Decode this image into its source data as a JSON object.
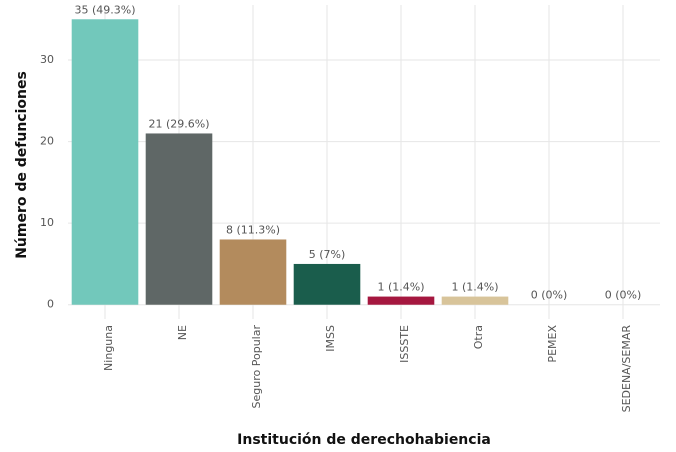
{
  "chart_data": {
    "type": "bar",
    "categories": [
      "Ninguna",
      "NE",
      "Seguro Popular",
      "IMSS",
      "ISSSTE",
      "Otra",
      "PEMEX",
      "SEDENA/SEMAR"
    ],
    "values": [
      35,
      21,
      8,
      5,
      1,
      1,
      0,
      0
    ],
    "value_labels": [
      "35 (49.3%)",
      "21 (29.6%)",
      "8 (11.3%)",
      "5 (7%)",
      "1 (1.4%)",
      "1 (1.4%)",
      "0 (0%)",
      "0 (0%)"
    ],
    "colors": [
      "#72c8bb",
      "#5f6766",
      "#b38b5d",
      "#1a5d4c",
      "#a5173f",
      "#d8c49a",
      "#98989a",
      "#691c32"
    ],
    "ylim": [
      -1.75,
      36.75
    ],
    "yticks": [
      0,
      10,
      20,
      30
    ],
    "grid": true,
    "xlabel": "Institución de derechohabiencia",
    "ylabel": "Número de defunciones"
  }
}
